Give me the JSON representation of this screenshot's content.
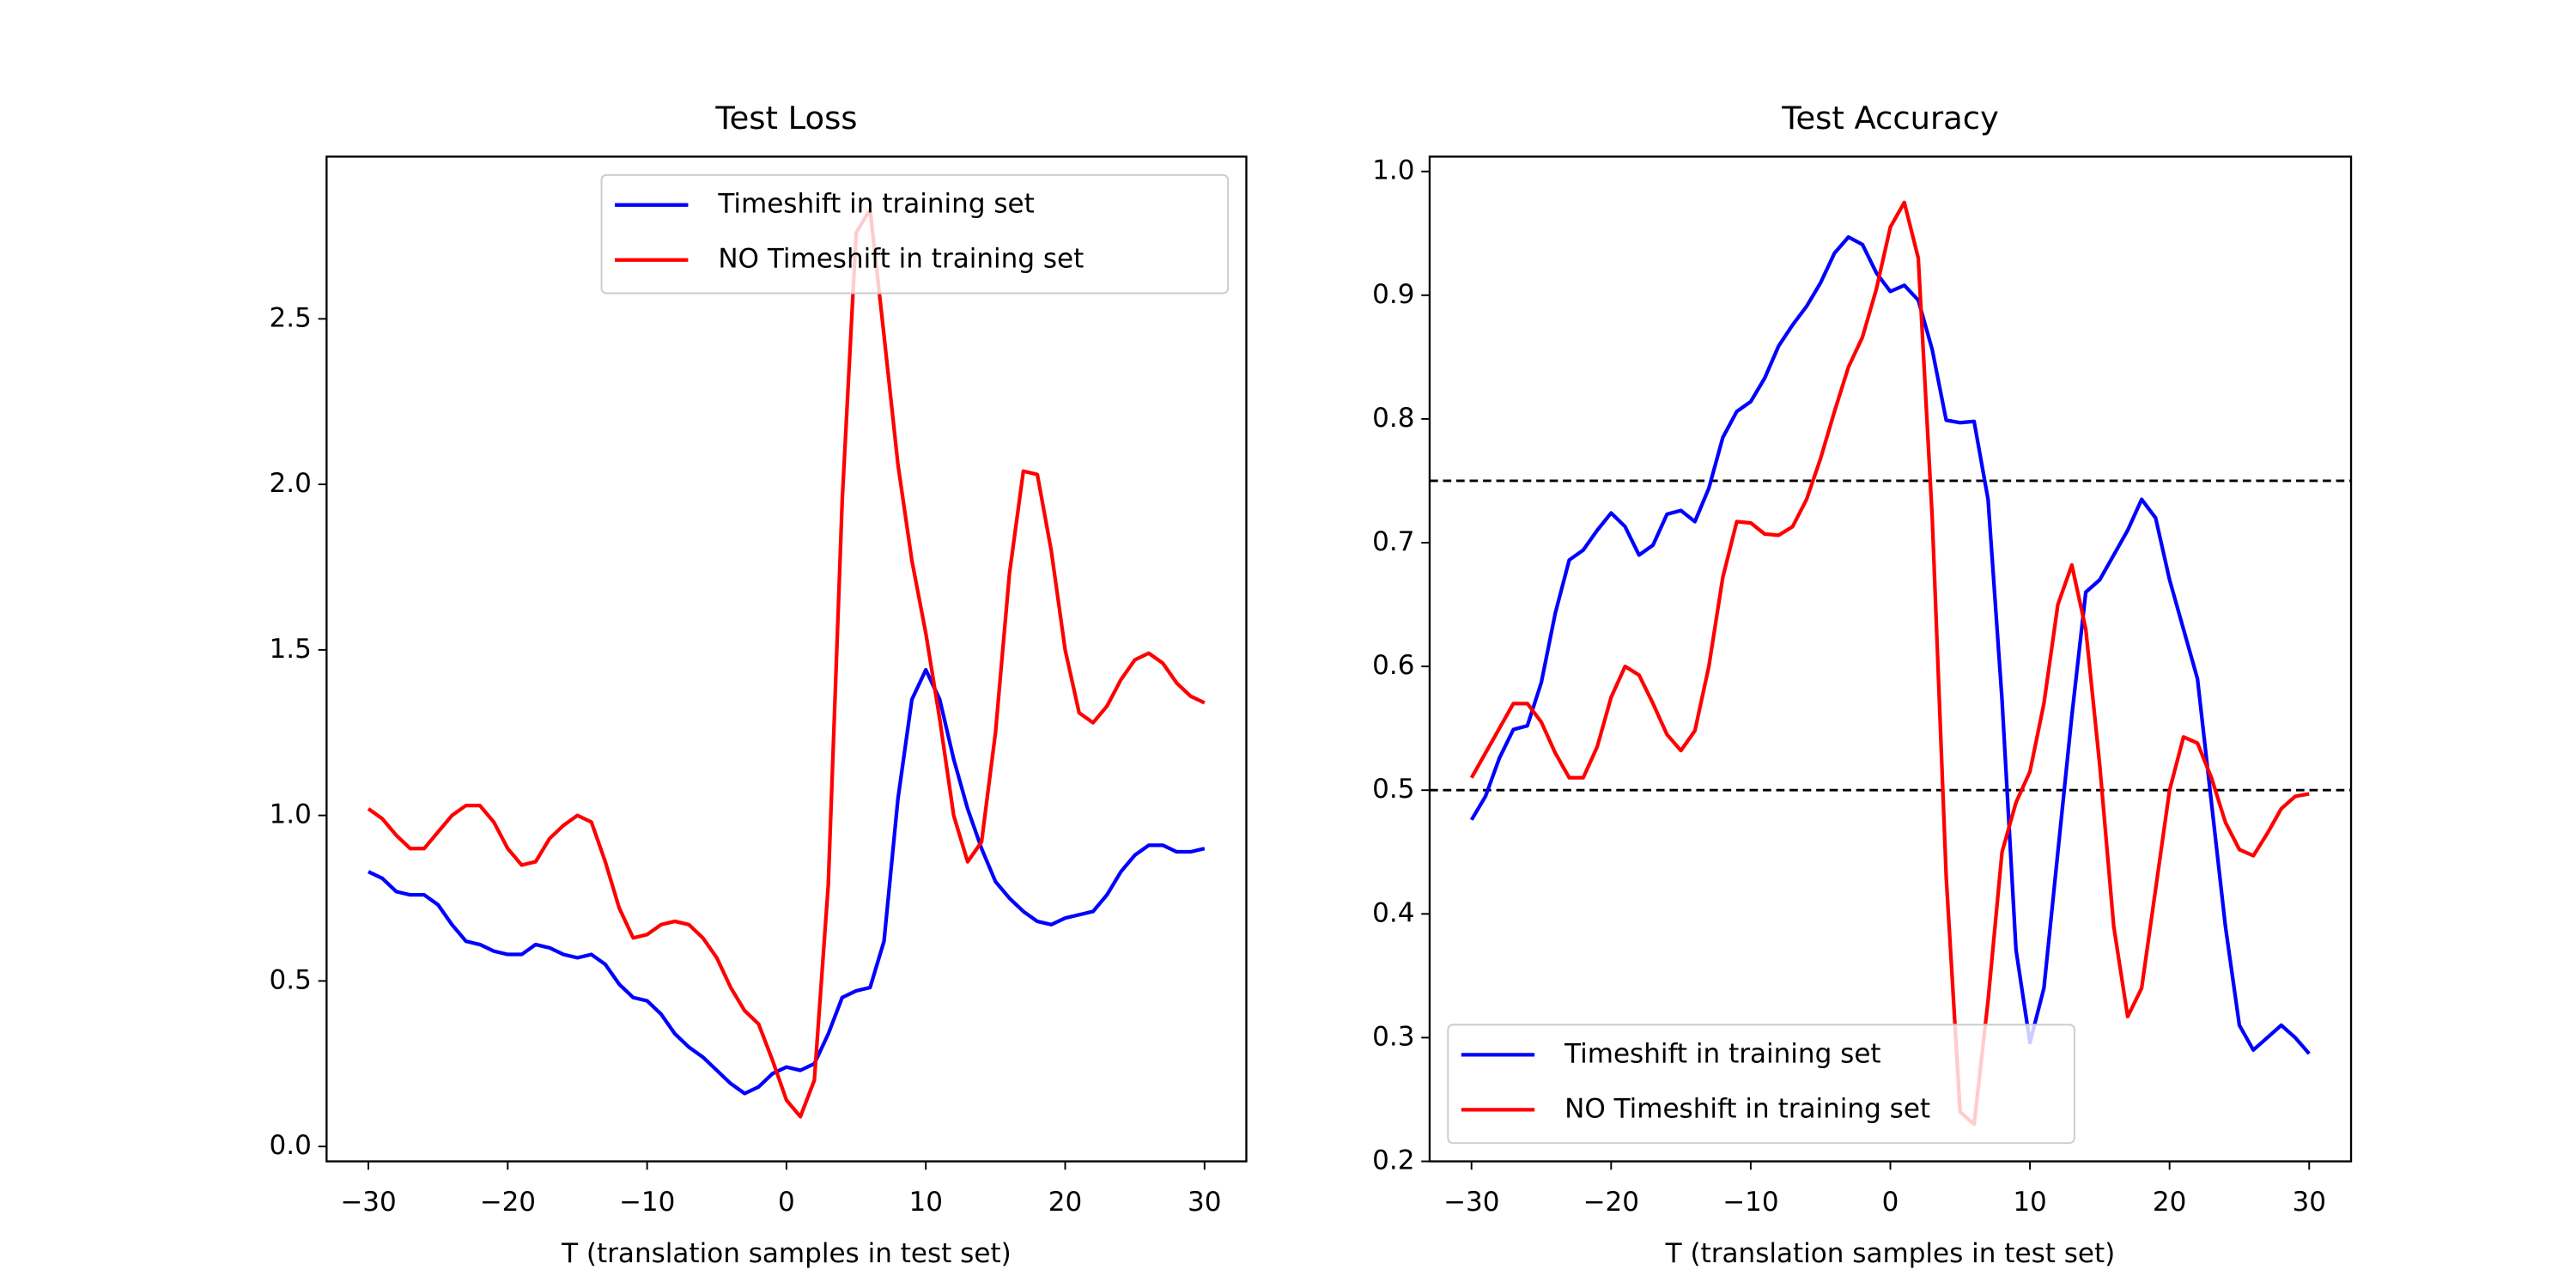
{
  "chart_data": [
    {
      "type": "line",
      "title": "Test Loss",
      "xlabel": "T  (translation samples in test set)",
      "x": [
        -30,
        -29,
        -28,
        -27,
        -26,
        -25,
        -24,
        -23,
        -22,
        -21,
        -20,
        -19,
        -18,
        -17,
        -16,
        -15,
        -14,
        -13,
        -12,
        -11,
        -10,
        -9,
        -8,
        -7,
        -6,
        -5,
        -4,
        -3,
        -2,
        -1,
        0,
        1,
        2,
        3,
        4,
        5,
        6,
        7,
        8,
        9,
        10,
        11,
        12,
        13,
        14,
        15,
        16,
        17,
        18,
        19,
        20,
        21,
        22,
        23,
        24,
        25,
        26,
        27,
        28,
        29,
        30
      ],
      "series": [
        {
          "name": "Timeshift in training set",
          "color": "#0000ff",
          "values": [
            0.83,
            0.81,
            0.77,
            0.76,
            0.76,
            0.73,
            0.67,
            0.62,
            0.61,
            0.59,
            0.58,
            0.58,
            0.61,
            0.6,
            0.58,
            0.57,
            0.58,
            0.55,
            0.49,
            0.45,
            0.44,
            0.4,
            0.34,
            0.3,
            0.27,
            0.23,
            0.19,
            0.16,
            0.18,
            0.22,
            0.24,
            0.23,
            0.25,
            0.34,
            0.45,
            0.47,
            0.48,
            0.62,
            1.05,
            1.35,
            1.44,
            1.35,
            1.17,
            1.02,
            0.9,
            0.8,
            0.75,
            0.71,
            0.68,
            0.67,
            0.69,
            0.7,
            0.71,
            0.76,
            0.83,
            0.88,
            0.91,
            0.91,
            0.89,
            0.89,
            0.9
          ]
        },
        {
          "name": "NO Timeshift in training set",
          "color": "#ff0000",
          "values": [
            1.02,
            0.99,
            0.94,
            0.9,
            0.9,
            0.95,
            1.0,
            1.03,
            1.03,
            0.98,
            0.9,
            0.85,
            0.86,
            0.93,
            0.97,
            1.0,
            0.98,
            0.86,
            0.72,
            0.63,
            0.64,
            0.67,
            0.68,
            0.67,
            0.63,
            0.57,
            0.48,
            0.41,
            0.37,
            0.26,
            0.14,
            0.09,
            0.2,
            0.79,
            1.95,
            2.76,
            2.83,
            2.45,
            2.06,
            1.77,
            1.55,
            1.29,
            1.0,
            0.86,
            0.92,
            1.25,
            1.73,
            2.04,
            2.03,
            1.8,
            1.5,
            1.31,
            1.28,
            1.33,
            1.41,
            1.47,
            1.49,
            1.46,
            1.4,
            1.36,
            1.34
          ]
        }
      ],
      "xlim": [
        -33,
        33
      ],
      "ylim": [
        -0.045,
        2.99
      ],
      "xticks": [
        {
          "value": -30,
          "label": "−30"
        },
        {
          "value": -20,
          "label": "−20"
        },
        {
          "value": -10,
          "label": "−10"
        },
        0,
        10,
        20,
        30
      ],
      "yticks": [
        {
          "value": 0,
          "label": "0.0"
        },
        0.5,
        {
          "value": 1,
          "label": "1.0"
        },
        1.5,
        {
          "value": 2,
          "label": "2.0"
        },
        2.5
      ],
      "legend": "upper right"
    },
    {
      "type": "line",
      "title": "Test Accuracy",
      "xlabel": "T  (translation samples in test set)",
      "x": [
        -30,
        -29,
        -28,
        -27,
        -26,
        -25,
        -24,
        -23,
        -22,
        -21,
        -20,
        -19,
        -18,
        -17,
        -16,
        -15,
        -14,
        -13,
        -12,
        -11,
        -10,
        -9,
        -8,
        -7,
        -6,
        -5,
        -4,
        -3,
        -2,
        -1,
        0,
        1,
        2,
        3,
        4,
        5,
        6,
        7,
        8,
        9,
        10,
        11,
        12,
        13,
        14,
        15,
        16,
        17,
        18,
        19,
        20,
        21,
        22,
        23,
        24,
        25,
        26,
        27,
        28,
        29,
        30
      ],
      "series": [
        {
          "name": "Timeshift in training set",
          "color": "#0000ff",
          "values": [
            0.476,
            0.495,
            0.526,
            0.549,
            0.552,
            0.587,
            0.643,
            0.686,
            0.694,
            0.71,
            0.724,
            0.713,
            0.69,
            0.698,
            0.723,
            0.726,
            0.717,
            0.744,
            0.785,
            0.806,
            0.814,
            0.833,
            0.859,
            0.876,
            0.891,
            0.91,
            0.934,
            0.947,
            0.941,
            0.918,
            0.903,
            0.908,
            0.896,
            0.856,
            0.799,
            0.797,
            0.798,
            0.735,
            0.573,
            0.371,
            0.296,
            0.34,
            0.45,
            0.56,
            0.66,
            0.67,
            0.69,
            0.71,
            0.735,
            0.72,
            0.67,
            0.63,
            0.59,
            0.49,
            0.39,
            0.31,
            0.29,
            0.3,
            0.31,
            0.3,
            0.287
          ]
        },
        {
          "name": "NO Timeshift in training set",
          "color": "#ff0000",
          "values": [
            0.51,
            0.53,
            0.55,
            0.57,
            0.57,
            0.555,
            0.53,
            0.51,
            0.51,
            0.535,
            0.575,
            0.6,
            0.593,
            0.57,
            0.545,
            0.532,
            0.548,
            0.6,
            0.672,
            0.717,
            0.716,
            0.707,
            0.706,
            0.713,
            0.735,
            0.768,
            0.806,
            0.842,
            0.866,
            0.905,
            0.955,
            0.975,
            0.93,
            0.72,
            0.43,
            0.24,
            0.23,
            0.33,
            0.45,
            0.49,
            0.515,
            0.57,
            0.65,
            0.682,
            0.63,
            0.52,
            0.39,
            0.317,
            0.34,
            0.42,
            0.5,
            0.543,
            0.538,
            0.51,
            0.474,
            0.452,
            0.447,
            0.465,
            0.485,
            0.495,
            0.497
          ]
        }
      ],
      "xlim": [
        -33,
        33
      ],
      "ylim": [
        0.2,
        1.012
      ],
      "xticks": [
        {
          "value": -30,
          "label": "−30"
        },
        {
          "value": -20,
          "label": "−20"
        },
        {
          "value": -10,
          "label": "−10"
        },
        0,
        10,
        20,
        30
      ],
      "yticks": [
        0.2,
        0.3,
        0.4,
        0.5,
        0.6,
        0.7,
        0.8,
        0.9,
        {
          "value": 1,
          "label": "1.0"
        }
      ],
      "hlines": [
        0.75,
        0.5
      ],
      "legend": "lower left"
    }
  ]
}
